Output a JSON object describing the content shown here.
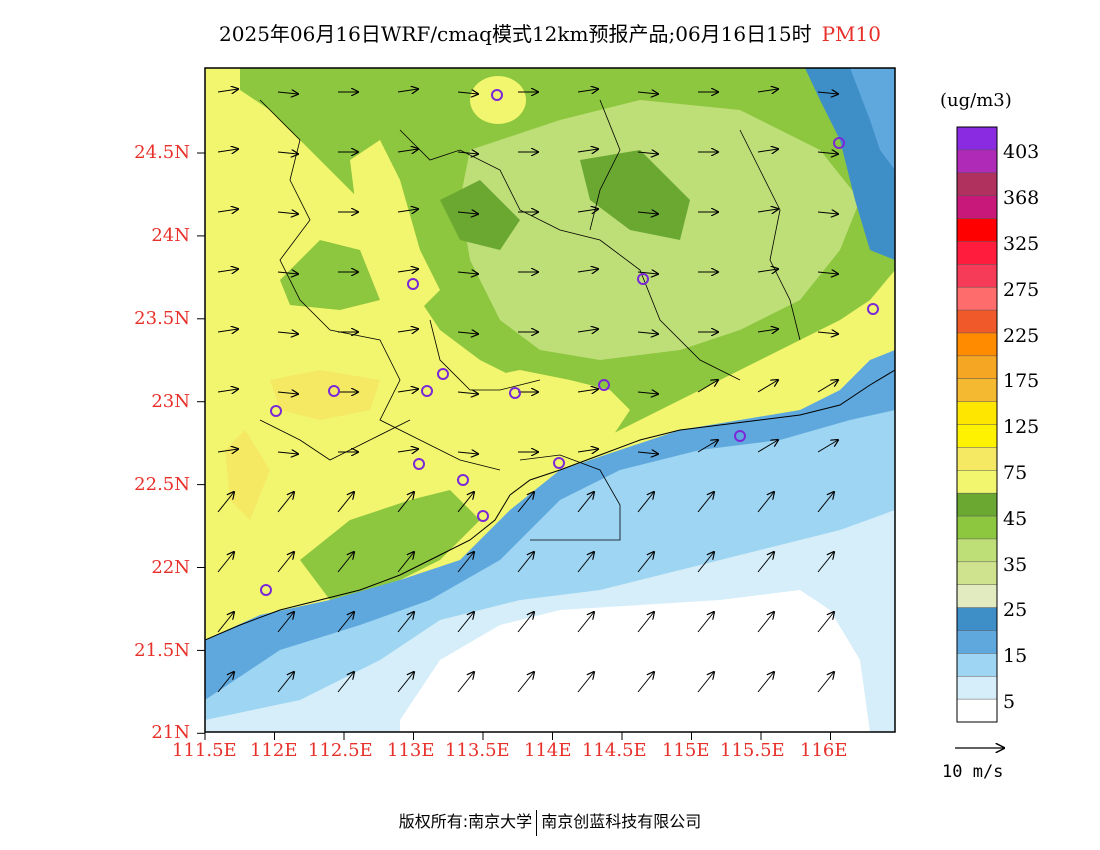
{
  "title": {
    "main": "2025年06月16日WRF/cmaq模式12km预报产品;06月16日15时",
    "variable": "PM10"
  },
  "axes": {
    "lat_labels": [
      "24.5N",
      "24N",
      "23.5N",
      "23N",
      "22.5N",
      "22N",
      "21.5N",
      "21N"
    ],
    "lon_labels": [
      "111.5E",
      "112E",
      "112.5E",
      "113E",
      "113.5E",
      "114E",
      "114.5E",
      "115E",
      "115.5E",
      "116E"
    ]
  },
  "colorbar": {
    "units": "(ug/m3)",
    "labels": [
      "403",
      "368",
      "325",
      "275",
      "225",
      "175",
      "125",
      "75",
      "45",
      "35",
      "25",
      "15",
      "5"
    ],
    "colors": [
      "#8a2be2",
      "#b02ab8",
      "#b0305e",
      "#c8187a",
      "#ff0000",
      "#ff1c3c",
      "#f53b57",
      "#ff6c6c",
      "#f05a2a",
      "#ff8c00",
      "#f5a623",
      "#f5b931",
      "#ffe600",
      "#fff200",
      "#f5e863",
      "#f2f56e",
      "#6aa832",
      "#8dc63f",
      "#bedf78",
      "#cfe38e",
      "#e1ebbf",
      "#3e8ec8",
      "#5fa8de",
      "#9dd5f2",
      "#d5eefa",
      "#ffffff"
    ]
  },
  "wind_legend": {
    "label": "10 m/s"
  },
  "footer": {
    "left": "版权所有:南京大学",
    "right": "南京创蓝科技有限公司"
  }
}
